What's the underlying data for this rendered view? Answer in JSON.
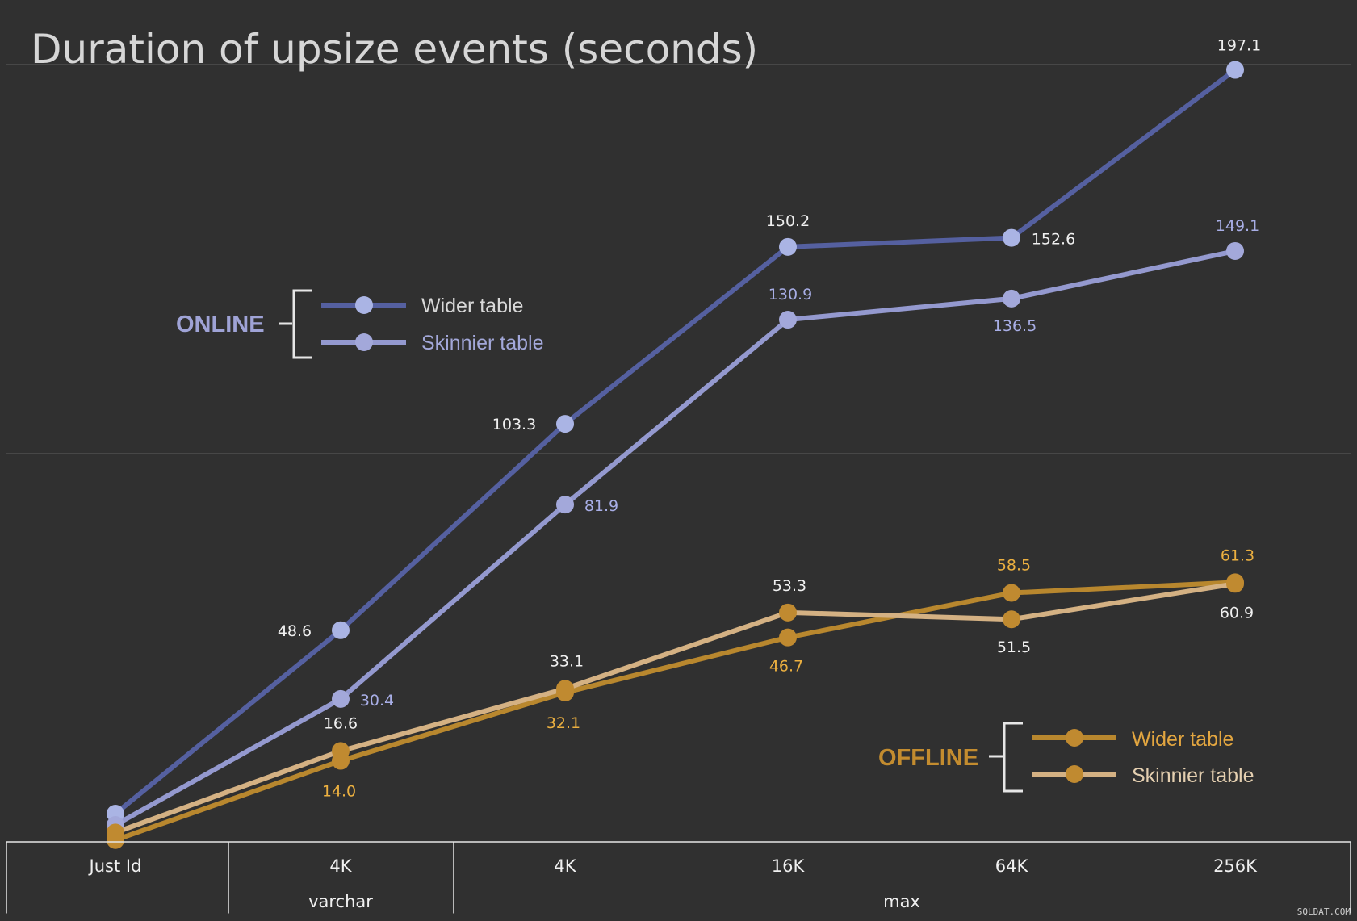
{
  "chart_data": {
    "type": "line",
    "title": "Duration of upsize events (seconds)",
    "categories": [
      "Just Id",
      "4K",
      "4K",
      "16K",
      "64K",
      "256K"
    ],
    "category_groups": [
      {
        "label": "",
        "categories": [
          "Just Id"
        ]
      },
      {
        "label": "varchar",
        "categories": [
          "4K"
        ]
      },
      {
        "label": "max",
        "categories": [
          "4K",
          "16K",
          "64K",
          "256K"
        ]
      }
    ],
    "ylim": [
      0,
      200
    ],
    "grid": "horizontal",
    "legend": [
      {
        "group": "ONLINE",
        "entries": [
          "Wider table",
          "Skinnier table"
        ]
      },
      {
        "group": "OFFLINE",
        "entries": [
          "Wider table",
          "Skinnier table"
        ]
      }
    ],
    "series": [
      {
        "group": "ONLINE",
        "name": "Wider table",
        "color": "#5560a0",
        "marker": "#aab4e4",
        "values": [
          0,
          48.6,
          103.3,
          150.2,
          152.6,
          197.1
        ],
        "labels": [
          "",
          "48.6",
          "103.3",
          "150.2",
          "152.6",
          "197.1"
        ],
        "label_color": "#f0f0f0"
      },
      {
        "group": "ONLINE",
        "name": "Skinnier table",
        "color": "#9499cf",
        "marker": "#a3a8da",
        "values": [
          -3,
          30.4,
          81.9,
          130.9,
          136.5,
          149.1
        ],
        "labels": [
          "",
          "30.4",
          "81.9",
          "130.9",
          "136.5",
          "149.1"
        ],
        "label_color": "#a8aee6"
      },
      {
        "group": "OFFLINE",
        "name": "Wider table",
        "color": "#b8872e",
        "marker": "#c08a30",
        "values": [
          -7,
          14.0,
          32.1,
          46.7,
          58.5,
          61.3
        ],
        "labels": [
          "",
          "14.0",
          "32.1",
          "46.7",
          "58.5",
          "61.3"
        ],
        "label_color": "#ecb040"
      },
      {
        "group": "OFFLINE",
        "name": "Skinnier table",
        "color": "#d4b183",
        "marker": "#c08a30",
        "values": [
          -5,
          16.6,
          33.1,
          53.3,
          51.5,
          60.9
        ],
        "labels": [
          "",
          "16.6",
          "33.1",
          "53.3",
          "51.5",
          "60.9"
        ],
        "label_color": "#f0f0f0"
      }
    ]
  },
  "legend_groups": {
    "online": "ONLINE",
    "offline": "OFFLINE"
  },
  "colors": {
    "background": "#303030",
    "online_title": "#9fa3d6",
    "offline_title": "#c38c2f",
    "online_legend_text": "#d8d8d8",
    "online_legend_text2": "#a3a8da",
    "offline_legend_text": "#e3a640",
    "offline_legend_text2": "#e4cfb0",
    "bracket": "#e6e6e6",
    "grid": "#555555",
    "axis": "#e6e6e6"
  },
  "watermark": "SQLDAT.COM"
}
